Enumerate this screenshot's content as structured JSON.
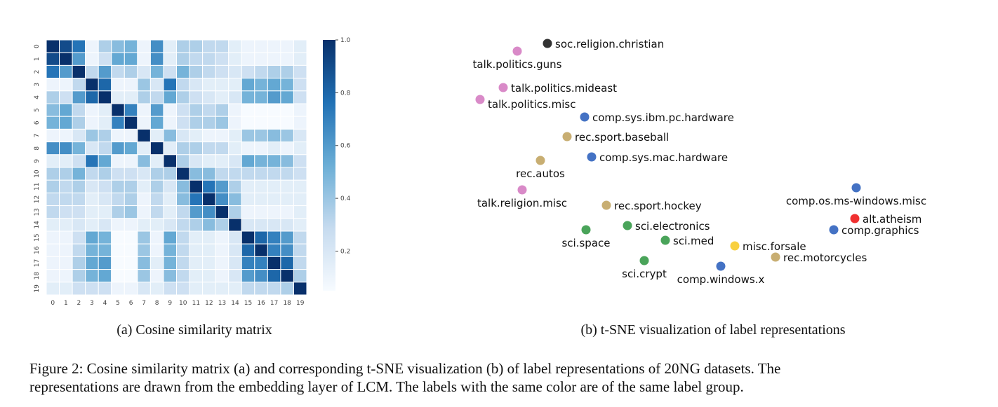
{
  "chart_data": [
    {
      "type": "heatmap",
      "subcaption": "(a) Cosine similarity matrix",
      "x_categories": [
        "0",
        "1",
        "2",
        "3",
        "4",
        "5",
        "6",
        "7",
        "8",
        "9",
        "10",
        "11",
        "12",
        "13",
        "14",
        "15",
        "16",
        "17",
        "18",
        "19"
      ],
      "y_categories": [
        "0",
        "1",
        "2",
        "3",
        "4",
        "5",
        "6",
        "7",
        "8",
        "9",
        "10",
        "11",
        "12",
        "13",
        "14",
        "15",
        "16",
        "17",
        "18",
        "19"
      ],
      "values": [
        [
          1,
          0.9,
          0.75,
          0.1,
          0.35,
          0.45,
          0.5,
          0.1,
          0.65,
          0.15,
          0.35,
          0.35,
          0.3,
          0.3,
          0.15,
          0.1,
          0.1,
          0.1,
          0.1,
          0.15
        ],
        [
          0.9,
          1,
          0.6,
          0.1,
          0.25,
          0.55,
          0.55,
          0.1,
          0.65,
          0.15,
          0.35,
          0.3,
          0.3,
          0.25,
          0.15,
          0.1,
          0.1,
          0.1,
          0.1,
          0.15
        ],
        [
          0.75,
          0.6,
          1,
          0.3,
          0.6,
          0.3,
          0.35,
          0.2,
          0.5,
          0.25,
          0.5,
          0.35,
          0.3,
          0.25,
          0.2,
          0.25,
          0.3,
          0.35,
          0.35,
          0.25
        ],
        [
          0.1,
          0.1,
          0.3,
          1,
          0.8,
          0.1,
          0.1,
          0.4,
          0.2,
          0.75,
          0.3,
          0.2,
          0.15,
          0.15,
          0.15,
          0.55,
          0.5,
          0.55,
          0.5,
          0.25
        ],
        [
          0.35,
          0.25,
          0.6,
          0.8,
          1,
          0.15,
          0.15,
          0.35,
          0.3,
          0.55,
          0.35,
          0.25,
          0.2,
          0.15,
          0.2,
          0.5,
          0.5,
          0.6,
          0.55,
          0.25
        ],
        [
          0.45,
          0.55,
          0.3,
          0.1,
          0.15,
          1,
          0.7,
          0.1,
          0.6,
          0.1,
          0.25,
          0.35,
          0.3,
          0.35,
          0.1,
          0.05,
          0.05,
          0.05,
          0.05,
          0.1
        ],
        [
          0.5,
          0.55,
          0.35,
          0.1,
          0.15,
          0.7,
          1,
          0.1,
          0.55,
          0.1,
          0.25,
          0.35,
          0.35,
          0.4,
          0.1,
          0.05,
          0.05,
          0.05,
          0.05,
          0.1
        ],
        [
          0.1,
          0.1,
          0.2,
          0.4,
          0.35,
          0.1,
          0.1,
          1,
          0.15,
          0.45,
          0.2,
          0.15,
          0.1,
          0.1,
          0.15,
          0.4,
          0.4,
          0.45,
          0.4,
          0.2
        ],
        [
          0.65,
          0.65,
          0.5,
          0.2,
          0.3,
          0.6,
          0.55,
          0.15,
          1,
          0.15,
          0.35,
          0.35,
          0.3,
          0.3,
          0.15,
          0.1,
          0.1,
          0.15,
          0.1,
          0.15
        ],
        [
          0.15,
          0.15,
          0.25,
          0.75,
          0.55,
          0.1,
          0.1,
          0.45,
          0.15,
          1,
          0.35,
          0.2,
          0.15,
          0.15,
          0.2,
          0.55,
          0.5,
          0.5,
          0.45,
          0.25
        ],
        [
          0.35,
          0.35,
          0.5,
          0.3,
          0.35,
          0.25,
          0.25,
          0.2,
          0.35,
          0.35,
          1,
          0.45,
          0.45,
          0.3,
          0.3,
          0.3,
          0.3,
          0.3,
          0.3,
          0.25
        ],
        [
          0.35,
          0.3,
          0.35,
          0.2,
          0.25,
          0.35,
          0.35,
          0.15,
          0.35,
          0.2,
          0.45,
          1,
          0.75,
          0.6,
          0.35,
          0.15,
          0.15,
          0.15,
          0.15,
          0.15
        ],
        [
          0.3,
          0.3,
          0.3,
          0.15,
          0.2,
          0.3,
          0.35,
          0.1,
          0.3,
          0.15,
          0.45,
          0.75,
          1,
          0.65,
          0.45,
          0.15,
          0.15,
          0.15,
          0.15,
          0.15
        ],
        [
          0.3,
          0.25,
          0.25,
          0.15,
          0.15,
          0.35,
          0.4,
          0.1,
          0.3,
          0.15,
          0.3,
          0.6,
          0.65,
          1,
          0.35,
          0.1,
          0.1,
          0.1,
          0.1,
          0.15
        ],
        [
          0.15,
          0.15,
          0.2,
          0.15,
          0.2,
          0.1,
          0.1,
          0.15,
          0.15,
          0.2,
          0.3,
          0.35,
          0.45,
          0.35,
          1,
          0.2,
          0.2,
          0.2,
          0.2,
          0.15
        ],
        [
          0.1,
          0.1,
          0.25,
          0.55,
          0.5,
          0.05,
          0.05,
          0.4,
          0.1,
          0.55,
          0.3,
          0.15,
          0.15,
          0.1,
          0.2,
          1,
          0.8,
          0.7,
          0.6,
          0.3
        ],
        [
          0.1,
          0.1,
          0.3,
          0.5,
          0.5,
          0.05,
          0.05,
          0.4,
          0.1,
          0.5,
          0.3,
          0.15,
          0.15,
          0.1,
          0.2,
          0.8,
          1,
          0.7,
          0.65,
          0.3
        ],
        [
          0.1,
          0.1,
          0.35,
          0.55,
          0.6,
          0.05,
          0.05,
          0.45,
          0.15,
          0.5,
          0.3,
          0.15,
          0.15,
          0.1,
          0.2,
          0.7,
          0.7,
          1,
          0.8,
          0.3
        ],
        [
          0.1,
          0.1,
          0.35,
          0.5,
          0.55,
          0.05,
          0.05,
          0.4,
          0.1,
          0.45,
          0.3,
          0.15,
          0.15,
          0.1,
          0.2,
          0.6,
          0.65,
          0.8,
          1,
          0.35
        ],
        [
          0.15,
          0.15,
          0.25,
          0.25,
          0.25,
          0.1,
          0.1,
          0.2,
          0.15,
          0.25,
          0.25,
          0.15,
          0.15,
          0.15,
          0.15,
          0.3,
          0.3,
          0.3,
          0.35,
          1
        ]
      ],
      "clim": [
        0.05,
        1
      ],
      "cticks": [
        0.2,
        0.4,
        0.6,
        0.8,
        {
          "value": 1,
          "label": "1.0"
        }
      ],
      "colors": [
        "#f7fbff",
        "#c6dbef",
        "#6baed6",
        "#2171b5",
        "#08306b"
      ]
    },
    {
      "type": "scatter",
      "subcaption": "(b) t-SNE visualization of label representations",
      "categories": [
        "soc.religion.christian",
        "talk.politics.guns",
        "talk.politics.mideast",
        "talk.politics.misc",
        "comp.sys.ibm.pc.hardware",
        "rec.sport.baseball",
        "comp.sys.mac.hardware",
        "rec.autos",
        "talk.religion.misc",
        "comp.os.ms-windows.misc",
        "rec.sport.hockey",
        "alt.atheism",
        "sci.electronics",
        "sci.space",
        "comp.graphics",
        "sci.med",
        "misc.forsale",
        "rec.motorcycles",
        "sci.crypt",
        "comp.windows.x"
      ],
      "x": [
        780,
        737,
        717,
        684,
        833,
        808,
        843,
        770,
        744,
        1220,
        864,
        1218,
        894,
        835,
        1188,
        948,
        1047,
        1105,
        918,
        1027
      ],
      "values": [
        338,
        327,
        275,
        258,
        233,
        205,
        176,
        171,
        129,
        132,
        107,
        88,
        78,
        72,
        72,
        57,
        49,
        33,
        28,
        20
      ],
      "colors": [
        "#333333",
        "#d98ac8",
        "#d98ac8",
        "#d98ac8",
        "#4472c4",
        "#c8ae72",
        "#4472c4",
        "#c8ae72",
        "#d98ac8",
        "#4472c4",
        "#c8ae72",
        "#f03030",
        "#4aa45a",
        "#4aa45a",
        "#4472c4",
        "#4aa45a",
        "#f8d040",
        "#c8ae72",
        "#4aa45a",
        "#4472c4"
      ]
    }
  ],
  "caption": [
    "Figure 2: Cosine similarity matrix (a) and corresponding t-SNE visualization (b) of label representations of 20NG datasets. The",
    "representations are drawn from the embedding layer of LCM. The labels with the same color are of the same label group."
  ]
}
